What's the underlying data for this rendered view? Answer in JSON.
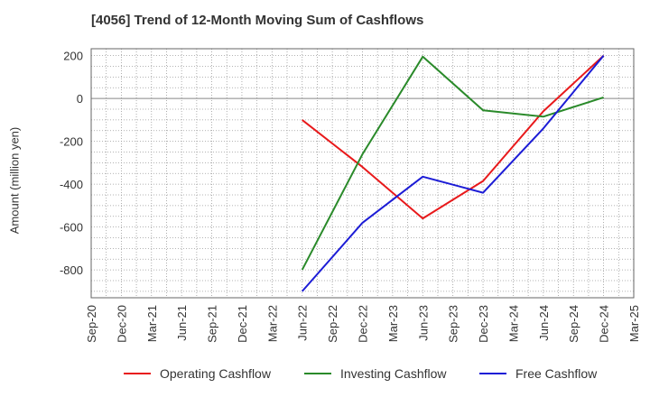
{
  "chart_data": {
    "type": "line",
    "title": "[4056]  Trend of 12-Month Moving Sum of Cashflows",
    "xlabel": "",
    "ylabel": "Amount (million yen)",
    "ylim": [
      -930,
      232
    ],
    "yticks": [
      200,
      0,
      -200,
      -400,
      -600,
      -800
    ],
    "categories": [
      "Sep-20",
      "Dec-20",
      "Mar-21",
      "Jun-21",
      "Sep-21",
      "Dec-21",
      "Mar-22",
      "Jun-22",
      "Sep-22",
      "Dec-22",
      "Mar-23",
      "Jun-23",
      "Sep-23",
      "Dec-23",
      "Mar-24",
      "Jun-24",
      "Sep-24",
      "Dec-24",
      "Mar-25"
    ],
    "grid": true,
    "legend_position": "bottom",
    "series": [
      {
        "name": "Operating Cashflow",
        "color": "#e8191b",
        "points": [
          [
            "Jun-22",
            -100
          ],
          [
            "Dec-22",
            -320
          ],
          [
            "Jun-23",
            -560
          ],
          [
            "Dec-23",
            -385
          ],
          [
            "Jun-24",
            -60
          ],
          [
            "Dec-24",
            200
          ]
        ]
      },
      {
        "name": "Investing Cashflow",
        "color": "#2a8a2a",
        "points": [
          [
            "Jun-22",
            -800
          ],
          [
            "Dec-22",
            -260
          ],
          [
            "Jun-23",
            195
          ],
          [
            "Dec-23",
            -55
          ],
          [
            "Jun-24",
            -85
          ],
          [
            "Dec-24",
            5
          ]
        ]
      },
      {
        "name": "Free Cashflow",
        "color": "#1c1cd6",
        "points": [
          [
            "Jun-22",
            -900
          ],
          [
            "Dec-22",
            -580
          ],
          [
            "Jun-23",
            -365
          ],
          [
            "Dec-23",
            -440
          ],
          [
            "Jun-24",
            -140
          ],
          [
            "Dec-24",
            200
          ]
        ]
      }
    ]
  }
}
